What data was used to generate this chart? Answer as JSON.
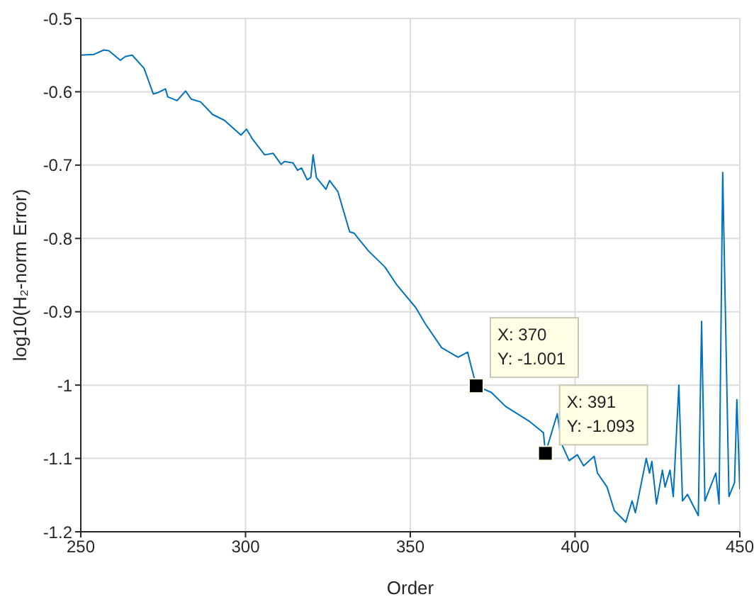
{
  "chart_data": {
    "type": "line",
    "xlabel": "Order",
    "ylabel": "log10(H₂-norm Error)",
    "xlim": [
      250,
      450
    ],
    "xticks": [
      250,
      300,
      350,
      400,
      450
    ],
    "ylim": [
      -1.2,
      -0.5
    ],
    "yticks": [
      -1.2,
      -1.1,
      -1,
      -0.9,
      -0.8,
      -0.7,
      -0.6,
      -0.5
    ],
    "grid": true,
    "legend": false,
    "marker": "none",
    "line_style": "solid",
    "annotations": [
      {
        "text": "X: 370\nY: -1.001",
        "x": 370,
        "y": -1.001
      },
      {
        "text": "X: 391\nY: -1.093",
        "x": 391,
        "y": -1.093
      }
    ],
    "x": [
      250,
      254,
      257,
      258.5,
      262,
      263.5,
      265.6,
      269.2,
      272,
      273.5,
      275.7,
      276.4,
      279.2,
      281.8,
      283.5,
      286.4,
      290,
      293.6,
      298.6,
      300.3,
      302.2,
      305.8,
      308.4,
      310.8,
      311.8,
      314.4,
      315.8,
      317,
      318.7,
      319.8,
      320.5,
      321.5,
      324.4,
      325.5,
      328,
      331.6,
      333,
      334.4,
      337.3,
      342.3,
      346,
      351.6,
      354.5,
      359.5,
      364.5,
      367.4,
      368.1,
      370,
      374.6,
      378.9,
      386,
      390.4,
      391,
      394.6,
      396,
      398.2,
      400.7,
      402.6,
      405.8,
      406.8,
      409.7,
      411.9,
      415.4,
      417.3,
      418.3,
      421.6,
      422.6,
      423.3,
      424.7,
      426.5,
      427.3,
      428.8,
      429.8,
      431.5,
      432.6,
      434.1,
      437.4,
      438.4,
      439.4,
      442.7,
      443.7,
      444.8,
      446.7,
      448.4,
      449.1,
      450
    ],
    "series": [
      {
        "color": "#0072bd",
        "values": [
          -0.55,
          -0.549,
          -0.543,
          -0.544,
          -0.557,
          -0.552,
          -0.55,
          -0.568,
          -0.603,
          -0.601,
          -0.596,
          -0.607,
          -0.612,
          -0.599,
          -0.61,
          -0.614,
          -0.631,
          -0.639,
          -0.659,
          -0.651,
          -0.665,
          -0.686,
          -0.684,
          -0.699,
          -0.695,
          -0.697,
          -0.707,
          -0.704,
          -0.72,
          -0.717,
          -0.686,
          -0.717,
          -0.733,
          -0.721,
          -0.736,
          -0.791,
          -0.793,
          -0.801,
          -0.817,
          -0.839,
          -0.864,
          -0.894,
          -0.916,
          -0.949,
          -0.962,
          -0.955,
          -0.968,
          -1.001,
          -1.01,
          -1.029,
          -1.049,
          -1.065,
          -1.093,
          -1.039,
          -1.081,
          -1.103,
          -1.095,
          -1.11,
          -1.097,
          -1.12,
          -1.139,
          -1.171,
          -1.187,
          -1.158,
          -1.174,
          -1.1,
          -1.12,
          -1.104,
          -1.162,
          -1.116,
          -1.139,
          -1.116,
          -1.152,
          -1,
          -1.158,
          -1.149,
          -1.178,
          -0.913,
          -1.158,
          -1.12,
          -1.162,
          -0.71,
          -1.152,
          -1.133,
          -1.02,
          -1.142
        ]
      }
    ]
  }
}
